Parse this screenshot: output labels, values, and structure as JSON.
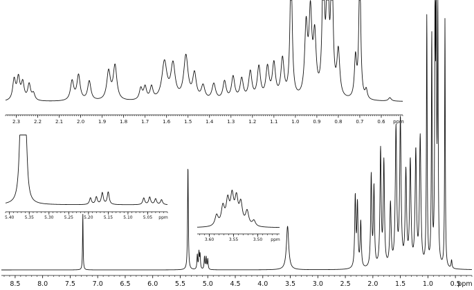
{
  "chart_data": [
    {
      "id": "main",
      "type": "line",
      "description_role": "full 1H NMR spectrum",
      "x_unit": "ppm",
      "xlim": [
        8.75,
        0.2
      ],
      "x_reversed": true,
      "tick_labels": [
        "8.5",
        "8.0",
        "7.5",
        "7.0",
        "6.5",
        "6.0",
        "5.5",
        "5.0",
        "4.5",
        "4.0",
        "3.5",
        "3.0",
        "2.5",
        "2.0",
        "1.5",
        "1.0",
        "0.5",
        "ppm"
      ],
      "ticks": [
        8.5,
        8.0,
        7.5,
        7.0,
        6.5,
        6.0,
        5.5,
        5.0,
        4.5,
        4.0,
        3.5,
        3.0,
        2.5,
        2.0,
        1.5,
        1.0,
        0.5
      ],
      "minor_step": 0.1,
      "ylim": [
        0,
        1
      ],
      "clip_top": true,
      "peaks": [
        {
          "ppm": 7.27,
          "h": 0.27,
          "w": 0.006
        },
        {
          "ppm": 5.36,
          "h": 0.5,
          "w": 0.008
        },
        {
          "ppm": 5.19,
          "h": 0.07,
          "w": 0.008
        },
        {
          "ppm": 5.16,
          "h": 0.08,
          "w": 0.008
        },
        {
          "ppm": 5.14,
          "h": 0.07,
          "w": 0.008
        },
        {
          "ppm": 5.06,
          "h": 0.06,
          "w": 0.008
        },
        {
          "ppm": 5.03,
          "h": 0.06,
          "w": 0.008
        },
        {
          "ppm": 5.0,
          "h": 0.05,
          "w": 0.008
        },
        {
          "ppm": 3.55,
          "h": 0.21,
          "w": 0.025
        },
        {
          "ppm": 2.32,
          "h": 0.34,
          "w": 0.012
        },
        {
          "ppm": 2.28,
          "h": 0.3,
          "w": 0.012
        },
        {
          "ppm": 2.22,
          "h": 0.22,
          "w": 0.012
        },
        {
          "ppm": 2.03,
          "h": 0.44,
          "w": 0.012
        },
        {
          "ppm": 1.98,
          "h": 0.38,
          "w": 0.012
        },
        {
          "ppm": 1.86,
          "h": 0.56,
          "w": 0.013
        },
        {
          "ppm": 1.8,
          "h": 0.5,
          "w": 0.013
        },
        {
          "ppm": 1.68,
          "h": 0.3,
          "w": 0.015
        },
        {
          "ppm": 1.58,
          "h": 0.66,
          "w": 0.015
        },
        {
          "ppm": 1.5,
          "h": 0.7,
          "w": 0.015
        },
        {
          "ppm": 1.4,
          "h": 0.45,
          "w": 0.015
        },
        {
          "ppm": 1.32,
          "h": 0.5,
          "w": 0.015
        },
        {
          "ppm": 1.22,
          "h": 0.55,
          "w": 0.015
        },
        {
          "ppm": 1.14,
          "h": 0.62,
          "w": 0.015
        },
        {
          "ppm": 1.02,
          "h": 1.2,
          "w": 0.008
        },
        {
          "ppm": 0.93,
          "h": 1.1,
          "w": 0.008
        },
        {
          "ppm": 0.87,
          "h": 1.2,
          "w": 0.008
        },
        {
          "ppm": 0.85,
          "h": 1.2,
          "w": 0.008
        },
        {
          "ppm": 0.82,
          "h": 1.2,
          "w": 0.008
        },
        {
          "ppm": 0.69,
          "h": 1.2,
          "w": 0.007
        },
        {
          "ppm": 0.57,
          "h": 0.04,
          "w": 0.01
        }
      ]
    },
    {
      "id": "inset_aliphatic",
      "type": "line",
      "description_role": "expansion 2.35–0.50 ppm",
      "x_unit": "ppm",
      "xlim": [
        2.35,
        0.5
      ],
      "x_reversed": true,
      "tick_labels": [
        "2.3",
        "2.2",
        "2.1",
        "2.0",
        "1.9",
        "1.8",
        "1.7",
        "1.6",
        "1.5",
        "1.4",
        "1.3",
        "1.2",
        "1.1",
        "1.0",
        "0.9",
        "0.8",
        "0.7",
        "0.6",
        "ppm"
      ],
      "ticks": [
        2.3,
        2.2,
        2.1,
        2.0,
        1.9,
        1.8,
        1.7,
        1.6,
        1.5,
        1.4,
        1.3,
        1.2,
        1.1,
        1.0,
        0.9,
        0.8,
        0.7,
        0.6
      ],
      "minor_step": 0.01,
      "ylim": [
        0,
        1
      ],
      "clip_top": true,
      "peaks": [
        {
          "ppm": 2.31,
          "h": 0.18,
          "w": 0.008
        },
        {
          "ppm": 2.29,
          "h": 0.19,
          "w": 0.008
        },
        {
          "ppm": 2.27,
          "h": 0.15,
          "w": 0.008
        },
        {
          "ppm": 2.24,
          "h": 0.14,
          "w": 0.008
        },
        {
          "ppm": 2.22,
          "h": 0.06,
          "w": 0.008
        },
        {
          "ppm": 2.04,
          "h": 0.17,
          "w": 0.009
        },
        {
          "ppm": 2.01,
          "h": 0.22,
          "w": 0.009
        },
        {
          "ppm": 1.96,
          "h": 0.17,
          "w": 0.009
        },
        {
          "ppm": 1.87,
          "h": 0.25,
          "w": 0.01
        },
        {
          "ppm": 1.84,
          "h": 0.3,
          "w": 0.01
        },
        {
          "ppm": 1.72,
          "h": 0.1,
          "w": 0.008
        },
        {
          "ppm": 1.7,
          "h": 0.11,
          "w": 0.008
        },
        {
          "ppm": 1.67,
          "h": 0.11,
          "w": 0.008
        },
        {
          "ppm": 1.61,
          "h": 0.33,
          "w": 0.014
        },
        {
          "ppm": 1.57,
          "h": 0.3,
          "w": 0.012
        },
        {
          "ppm": 1.51,
          "h": 0.38,
          "w": 0.012
        },
        {
          "ppm": 1.47,
          "h": 0.22,
          "w": 0.01
        },
        {
          "ppm": 1.43,
          "h": 0.12,
          "w": 0.01
        },
        {
          "ppm": 1.38,
          "h": 0.14,
          "w": 0.01
        },
        {
          "ppm": 1.33,
          "h": 0.16,
          "w": 0.009
        },
        {
          "ppm": 1.29,
          "h": 0.2,
          "w": 0.009
        },
        {
          "ppm": 1.25,
          "h": 0.18,
          "w": 0.009
        },
        {
          "ppm": 1.21,
          "h": 0.24,
          "w": 0.009
        },
        {
          "ppm": 1.17,
          "h": 0.28,
          "w": 0.009
        },
        {
          "ppm": 1.13,
          "h": 0.27,
          "w": 0.009
        },
        {
          "ppm": 1.1,
          "h": 0.3,
          "w": 0.009
        },
        {
          "ppm": 1.06,
          "h": 0.34,
          "w": 0.009
        },
        {
          "ppm": 1.02,
          "h": 1.2,
          "w": 0.006
        },
        {
          "ppm": 0.95,
          "h": 0.6,
          "w": 0.008
        },
        {
          "ppm": 0.93,
          "h": 0.7,
          "w": 0.008
        },
        {
          "ppm": 0.91,
          "h": 0.5,
          "w": 0.008
        },
        {
          "ppm": 0.87,
          "h": 1.2,
          "w": 0.006
        },
        {
          "ppm": 0.85,
          "h": 1.2,
          "w": 0.006
        },
        {
          "ppm": 0.83,
          "h": 1.2,
          "w": 0.006
        },
        {
          "ppm": 0.8,
          "h": 0.4,
          "w": 0.008
        },
        {
          "ppm": 0.72,
          "h": 0.35,
          "w": 0.006
        },
        {
          "ppm": 0.7,
          "h": 1.2,
          "w": 0.005
        },
        {
          "ppm": 0.67,
          "h": 0.08,
          "w": 0.006
        },
        {
          "ppm": 0.56,
          "h": 0.03,
          "w": 0.008
        }
      ]
    },
    {
      "id": "inset_olefinic",
      "type": "line",
      "description_role": "expansion 5.40–5.00 ppm",
      "x_unit": "ppm",
      "xlim": [
        5.41,
        5.0
      ],
      "x_reversed": true,
      "tick_labels": [
        "5.40",
        "5.35",
        "5.30",
        "5.25",
        "5.20",
        "5.15",
        "5.10",
        "5.05",
        "ppm"
      ],
      "ticks": [
        5.4,
        5.35,
        5.3,
        5.25,
        5.2,
        5.15,
        5.1,
        5.05
      ],
      "minor_step": 0.01,
      "ylim": [
        0,
        1
      ],
      "clip_top": false,
      "peaks": [
        {
          "ppm": 5.372,
          "h": 0.78,
          "w": 0.0045
        },
        {
          "ppm": 5.365,
          "h": 0.8,
          "w": 0.0045
        },
        {
          "ppm": 5.358,
          "h": 0.6,
          "w": 0.004
        },
        {
          "ppm": 5.195,
          "h": 0.08,
          "w": 0.003
        },
        {
          "ppm": 5.18,
          "h": 0.09,
          "w": 0.003
        },
        {
          "ppm": 5.165,
          "h": 0.14,
          "w": 0.003
        },
        {
          "ppm": 5.15,
          "h": 0.15,
          "w": 0.003
        },
        {
          "ppm": 5.06,
          "h": 0.08,
          "w": 0.003
        },
        {
          "ppm": 5.045,
          "h": 0.09,
          "w": 0.003
        },
        {
          "ppm": 5.03,
          "h": 0.07,
          "w": 0.003
        },
        {
          "ppm": 5.015,
          "h": 0.06,
          "w": 0.003
        }
      ]
    },
    {
      "id": "inset_methine",
      "type": "line",
      "description_role": "expansion 3.62–3.46 ppm",
      "x_unit": "ppm",
      "xlim": [
        3.625,
        3.455
      ],
      "x_reversed": true,
      "tick_labels": [
        "3.60",
        "3.55",
        "3.50",
        "ppm"
      ],
      "ticks": [
        3.6,
        3.55,
        3.5
      ],
      "minor_step": 0.01,
      "ylim": [
        0,
        1
      ],
      "clip_top": false,
      "peaks": [
        {
          "ppm": 3.585,
          "h": 0.28,
          "w": 0.004
        },
        {
          "ppm": 3.572,
          "h": 0.48,
          "w": 0.004
        },
        {
          "ppm": 3.562,
          "h": 0.62,
          "w": 0.004
        },
        {
          "ppm": 3.553,
          "h": 0.72,
          "w": 0.004
        },
        {
          "ppm": 3.544,
          "h": 0.66,
          "w": 0.004
        },
        {
          "ppm": 3.535,
          "h": 0.55,
          "w": 0.004
        },
        {
          "ppm": 3.522,
          "h": 0.38,
          "w": 0.004
        },
        {
          "ppm": 3.508,
          "h": 0.15,
          "w": 0.004
        }
      ]
    }
  ]
}
